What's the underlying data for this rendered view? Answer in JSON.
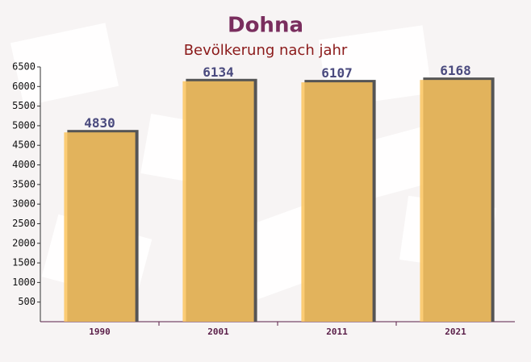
{
  "chart_data": {
    "type": "bar",
    "title": "Dohna",
    "subtitle": "Bevölkerung nach jahr",
    "categories": [
      "1990",
      "2001",
      "2011",
      "2021"
    ],
    "values": [
      4830,
      6134,
      6107,
      6168
    ],
    "color": "#fcc45e",
    "ylim": [
      0,
      6500
    ],
    "yticks": [
      500,
      1000,
      1500,
      2000,
      2500,
      3000,
      3500,
      4000,
      4500,
      5000,
      5500,
      6000,
      6500
    ],
    "grid": false
  }
}
